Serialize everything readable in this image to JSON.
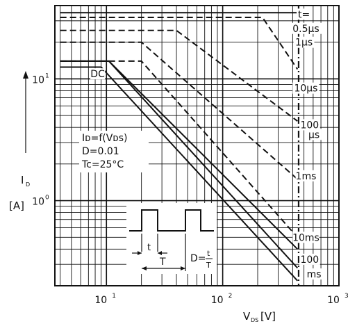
{
  "chart_data": {
    "type": "line",
    "title": "",
    "xlabel": "V",
    "xlabel_sub": "DS",
    "xlabel_unit": "[V]",
    "ylabel": "I",
    "ylabel_sub": "D",
    "ylabel_unit": "[A]",
    "xscale": "log",
    "yscale": "log",
    "xlim": [
      3.6,
      1000
    ],
    "ylim": [
      0.2,
      40
    ],
    "grid": true,
    "x_ticks": [
      {
        "value": 10,
        "base": "10",
        "exp": "1"
      },
      {
        "value": 100,
        "base": "10",
        "exp": "2"
      },
      {
        "value": 1000,
        "base": "10",
        "exp": "3"
      }
    ],
    "y_ticks": [
      {
        "value": 1,
        "base": "10",
        "exp": "0"
      },
      {
        "value": 10,
        "base": "10",
        "exp": "1"
      }
    ],
    "conditions": [
      "Iᴅ=f(Vᴅs)",
      "D=0.01",
      "Tc=25°C"
    ],
    "inset": {
      "t_label": "t",
      "T_label": "T",
      "duty_label": "D=",
      "frac_num": "t",
      "frac_den": "T"
    },
    "vline": {
      "x": 450,
      "style": "dash-dot"
    },
    "series": [
      {
        "name": "t= 0.5µs",
        "style": "solid",
        "points": [
          [
            4.0,
            35
          ],
          [
            440,
            35
          ]
        ]
      },
      {
        "name": "1µs",
        "style": "dashed",
        "points": [
          [
            4.0,
            32
          ],
          [
            220,
            32
          ],
          [
            440,
            12
          ]
        ]
      },
      {
        "name": "10µs",
        "style": "dashed",
        "points": [
          [
            4.0,
            25
          ],
          [
            40,
            25
          ],
          [
            440,
            4.5
          ]
        ]
      },
      {
        "name": "100 µs",
        "style": "dashed",
        "points": [
          [
            4.0,
            20
          ],
          [
            20,
            20
          ],
          [
            440,
            1.5
          ]
        ]
      },
      {
        "name": "1ms",
        "style": "dashed",
        "points": [
          [
            4.0,
            14
          ],
          [
            20,
            14
          ],
          [
            440,
            0.5
          ]
        ]
      },
      {
        "name": "10ms",
        "style": "solid",
        "points": [
          [
            4.0,
            14
          ],
          [
            10.5,
            14
          ],
          [
            440,
            0.4
          ]
        ]
      },
      {
        "name": "100 ms",
        "style": "solid",
        "points": [
          [
            4.0,
            14
          ],
          [
            10.5,
            14
          ],
          [
            440,
            0.28
          ]
        ]
      },
      {
        "name": "DC",
        "style": "solid",
        "points": [
          [
            4.0,
            12.5
          ],
          [
            9,
            12.5
          ],
          [
            440,
            0.22
          ]
        ]
      }
    ],
    "curve_labels": [
      {
        "text": "t=",
        "x": 500,
        "y": 34
      },
      {
        "text": "0.5µs",
        "x": 520,
        "y": 26
      },
      {
        "text": "1µs",
        "x": 500,
        "y": 20
      },
      {
        "text": "10µs",
        "x": 520,
        "y": 8.4
      },
      {
        "text": "100",
        "x": 560,
        "y": 4.2
      },
      {
        "text": "µs",
        "x": 610,
        "y": 3.5
      },
      {
        "text": "1ms",
        "x": 520,
        "y": 1.6
      },
      {
        "text": "10ms",
        "x": 520,
        "y": 0.5
      },
      {
        "text": "100",
        "x": 560,
        "y": 0.33
      },
      {
        "text": "ms",
        "x": 610,
        "y": 0.25
      },
      {
        "text": "DC",
        "x": 8.4,
        "y": 11
      }
    ]
  }
}
